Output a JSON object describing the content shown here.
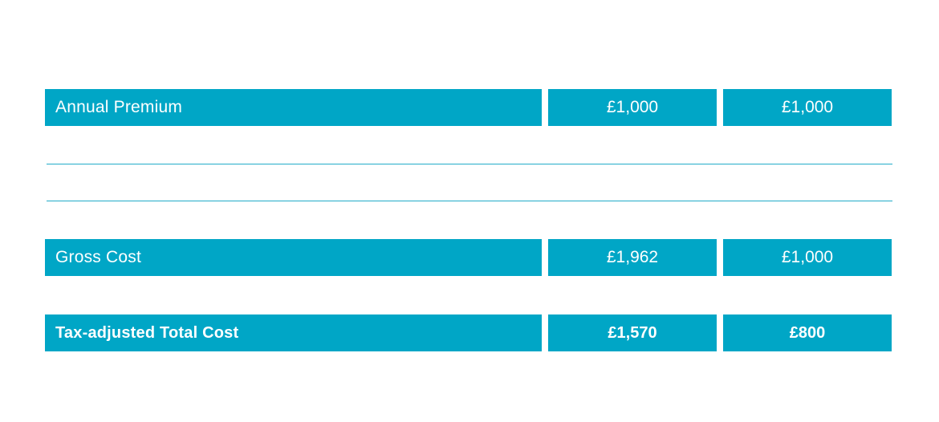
{
  "rows": [
    {
      "label": "Annual Premium",
      "value_1": "£1,000",
      "value_2": "£1,000"
    },
    {
      "label": "Gross Cost",
      "value_1": "£1,962",
      "value_2": "£1,000"
    },
    {
      "label": "Tax-adjusted Total Cost",
      "value_1": "£1,570",
      "value_2": "£800"
    }
  ],
  "colors": {
    "row_background": "#00a6c6",
    "row_text": "#ffffff",
    "divider": "#22acc9"
  }
}
